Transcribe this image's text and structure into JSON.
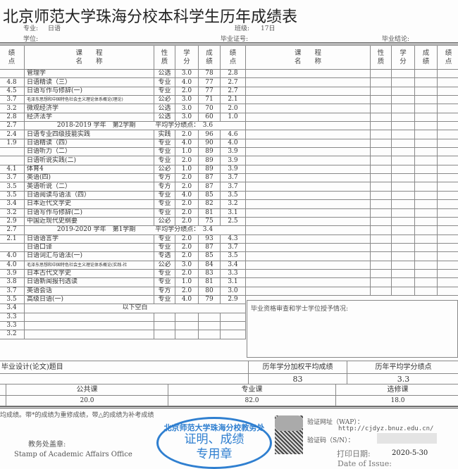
{
  "title": "北京师范大学珠海分校本科学生历年成绩表",
  "meta": {
    "major_label": "专业:",
    "major": "日语",
    "class_label": "班级:",
    "class": "17日",
    "degree_label": "学位:",
    "cert_label": "毕业证号:",
    "conclusion_label": "毕业结论:"
  },
  "headers": {
    "gpa": "绩\n点",
    "course": "课　　程\n名　　称",
    "type": "性\n质",
    "credit": "学\n分",
    "score": "成\n绩",
    "gp": "绩\n点"
  },
  "left_col_gp": [
    "",
    "4.8",
    "4.5",
    "3.7",
    "3.2",
    "2.8",
    "2.7",
    "2.4",
    "1.9",
    "",
    "",
    "4.1",
    "3.7",
    "3.5",
    "3.5",
    "3.4",
    "3.2",
    "2.9",
    "2.7",
    "2.1",
    "",
    "4.0",
    "4.0",
    "3.9",
    "3.8",
    "3.7",
    "3.5",
    "3.4",
    "3.3",
    "3.3",
    "3.2"
  ],
  "rows": [
    {
      "name": "管理学",
      "type": "公选",
      "credit": "3.0",
      "score": "78",
      "gp": "2.8"
    },
    {
      "name": "日语精读（三）",
      "type": "专业",
      "credit": "4.0",
      "score": "77",
      "gp": "2.7"
    },
    {
      "name": "日语写作与修辞(一)",
      "type": "专业",
      "credit": "2.0",
      "score": "77",
      "gp": "2.7"
    },
    {
      "name": "毛泽东思想和中国特色社会主义理论体系概论(理论)",
      "type": "公必",
      "credit": "3.0",
      "score": "71",
      "gp": "2.1",
      "small": true
    },
    {
      "name": "微观经济学",
      "type": "公选",
      "credit": "3.0",
      "score": "70",
      "gp": "2.0"
    },
    {
      "name": "经济法学",
      "type": "公选",
      "credit": "3.0",
      "score": "60",
      "gp": "1.0"
    },
    {
      "semester": "2018-2019 学年　第2学期",
      "avg": "平均学分绩点：　3.6"
    },
    {
      "name": "日语专业四级技能实践",
      "type": "实践",
      "credit": "2.0",
      "score": "96",
      "gp": "4.6"
    },
    {
      "name": "日语精读（四）",
      "type": "专业",
      "credit": "4.0",
      "score": "90",
      "gp": "4.0"
    },
    {
      "name": "日语听力（二）",
      "type": "专业",
      "credit": "1.0",
      "score": "89",
      "gp": "3.9"
    },
    {
      "name": "日语听说实践(二)",
      "type": "专业",
      "credit": "2.0",
      "score": "89",
      "gp": "3.9"
    },
    {
      "name": "体育4",
      "type": "公必",
      "credit": "1.0",
      "score": "89",
      "gp": "3.9"
    },
    {
      "name": "英语(四)",
      "type": "专方",
      "credit": "2.0",
      "score": "87",
      "gp": "3.7"
    },
    {
      "name": "英语听说（二）",
      "type": "专方",
      "credit": "2.0",
      "score": "87",
      "gp": "3.7"
    },
    {
      "name": "日语阅读与语法（四）",
      "type": "专业",
      "credit": "4.0",
      "score": "85",
      "gp": "3.5"
    },
    {
      "name": "日本近代文学史",
      "type": "专业",
      "credit": "2.0",
      "score": "82",
      "gp": "3.2"
    },
    {
      "name": "日语写作与修辞(二)",
      "type": "专业",
      "credit": "2.0",
      "score": "81",
      "gp": "3.1"
    },
    {
      "name": "中国近现代史纲要",
      "type": "公必",
      "credit": "2.0",
      "score": "75",
      "gp": "2.5"
    },
    {
      "semester": "2019-2020 学年　第1学期",
      "avg": "平均学分绩点：　3.4"
    },
    {
      "name": "日语语言学",
      "type": "专业",
      "credit": "2.0",
      "score": "93",
      "gp": "4.3"
    },
    {
      "name": "日语口译",
      "type": "专业",
      "credit": "2.0",
      "score": "87",
      "gp": "3.7"
    },
    {
      "name": "日语词汇与语法(一)",
      "type": "专选",
      "credit": "2.0",
      "score": "85",
      "gp": "3.5"
    },
    {
      "name": "毛泽东思想和中国特色社会主义理论体系概论(实践-社",
      "type": "公必",
      "credit": "3.0",
      "score": "84",
      "gp": "3.4",
      "small": true
    },
    {
      "name": "日本古代文学史",
      "type": "专业",
      "credit": "2.0",
      "score": "83",
      "gp": "3.3"
    },
    {
      "name": "日语新闻报刊选读",
      "type": "专业",
      "credit": "1.0",
      "score": "81",
      "gp": "3.1"
    },
    {
      "name": "英语会话",
      "type": "专方",
      "credit": "2.0",
      "score": "80",
      "gp": "3.0"
    },
    {
      "name": "高级日语(一)",
      "type": "专业",
      "credit": "4.0",
      "score": "79",
      "gp": "2.9"
    },
    {
      "blank_note": "以下空白"
    },
    {},
    {},
    {}
  ],
  "review_label": "毕业资格审查和学士学位授予情况:",
  "thesis_label": "毕业设计(论文)题目",
  "weighted_avg_label": "历年学分加权平均成绩",
  "weighted_avg": "83",
  "avg_gpa_label": "历年平均学分绩点",
  "avg_gpa": "3.3",
  "credits": {
    "public_label": "公共课",
    "public": "20.0",
    "major_label": "专业课",
    "major": "82.0",
    "elective_label": "选修课",
    "elective": "18.0"
  },
  "note": "均成绩。带*的成绩为重修成绩，带△的成绩为补考成绩",
  "stamp": {
    "arc": "北京师范大学珠海分校教务处",
    "line1": "证明、成绩",
    "line2": "专用章"
  },
  "stamp_caption": "教务处盖章:",
  "stamp_caption_en": "Stamp of Academic Affairs Office",
  "verify_url_label": "验证网址（WAP）：",
  "verify_url": "http://cjdyz.bnuz.edu.cn/",
  "verify_code_label": "验证码（S/N）：",
  "print_date_label": "打印日期:",
  "print_date": "2020-5-30",
  "date_en": "Date of Issue:"
}
